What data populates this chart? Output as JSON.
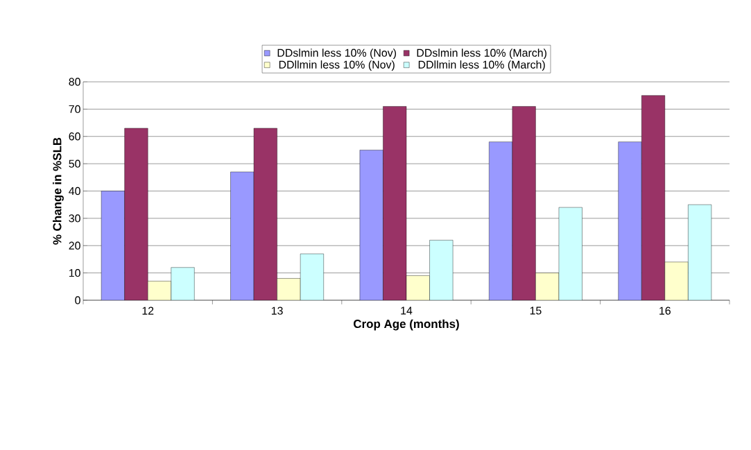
{
  "chart_data": {
    "type": "bar",
    "xlabel": "Crop Age (months)",
    "ylabel": "% Change in %SLB",
    "categories": [
      "12",
      "13",
      "14",
      "15",
      "16"
    ],
    "series": [
      {
        "name": "DDslmin less 10% (Nov)",
        "color": "#9999ff",
        "values": [
          40,
          47,
          55,
          58,
          58
        ]
      },
      {
        "name": "DDslmin less 10% (March)",
        "color": "#993366",
        "values": [
          63,
          63,
          71,
          71,
          75
        ]
      },
      {
        "name": "DDllmin less 10% (Nov)",
        "color": "#ffffcc",
        "values": [
          7,
          8,
          9,
          10,
          14
        ]
      },
      {
        "name": "DDllmin less 10% (March)",
        "color": "#ccffff",
        "values": [
          12,
          17,
          22,
          34,
          35
        ]
      }
    ],
    "ylim": [
      0,
      80
    ],
    "yticks": [
      0,
      10,
      20,
      30,
      40,
      50,
      60,
      70,
      80
    ],
    "grid": "y",
    "legend": "top"
  }
}
